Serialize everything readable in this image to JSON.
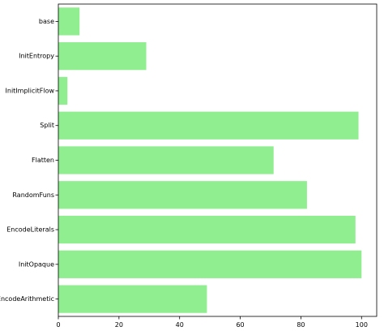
{
  "chart_data": {
    "type": "bar",
    "orientation": "horizontal",
    "title": "",
    "xlabel": "",
    "ylabel": "",
    "categories": [
      "base",
      "InitEntropy",
      "InitImplicitFlow",
      "Split",
      "Flatten",
      "RandomFuns",
      "EncodeLiterals",
      "InitOpaque",
      "EncodeArithmetic"
    ],
    "values": [
      7,
      29,
      3,
      99,
      71,
      82,
      98,
      100,
      49
    ],
    "xlim": [
      0,
      105
    ],
    "x_ticks": [
      0,
      20,
      40,
      60,
      80,
      100
    ],
    "x_tick_labels": [
      "0",
      "20",
      "40",
      "60",
      "80",
      "100"
    ],
    "bar_color": "#90ee90",
    "grid": false,
    "legend": "none"
  }
}
